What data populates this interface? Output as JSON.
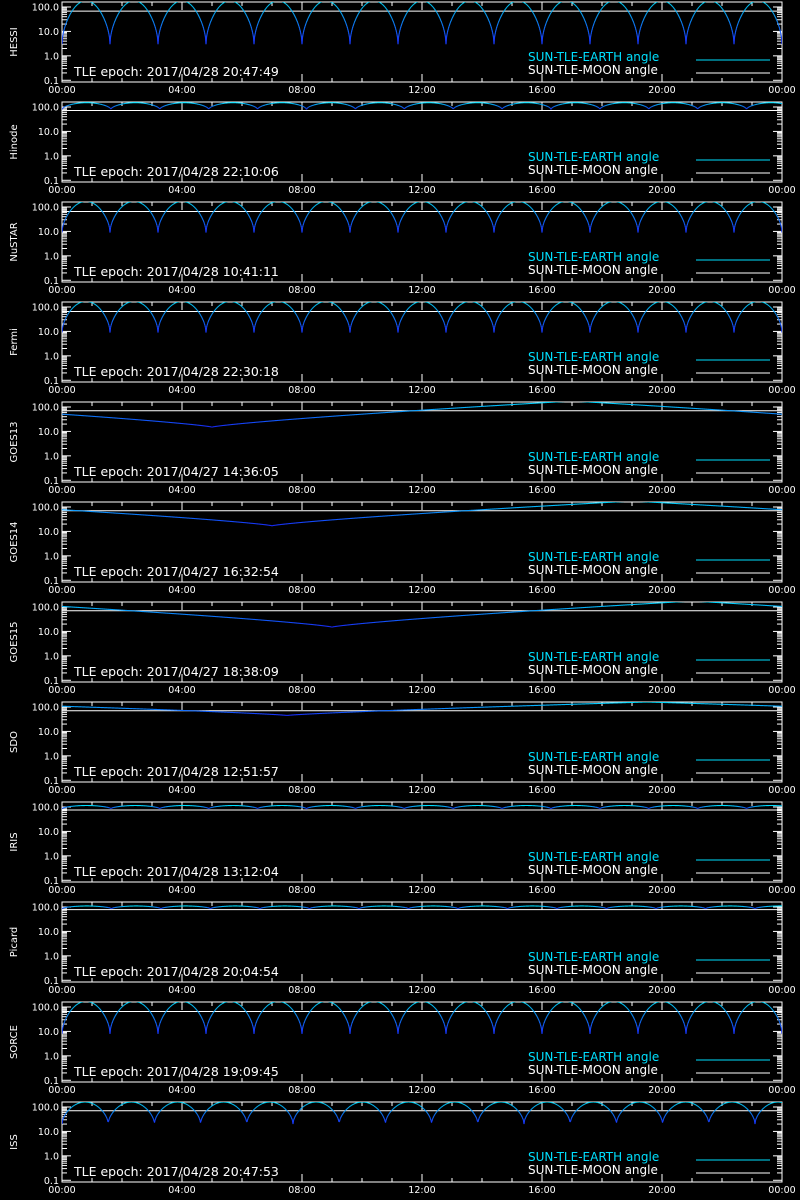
{
  "colors": {
    "background": "#000000",
    "axis": "#ffffff",
    "earth_line": "#00e0ff",
    "moon_line": "#ffffff",
    "curve_dip": "#1a2cff"
  },
  "shared": {
    "x_tick_labels": [
      "00:00",
      "04:00",
      "08:00",
      "12:00",
      "16:00",
      "20:00",
      "00:00"
    ],
    "y_tick_labels": [
      "100.0",
      "10.0",
      "1.0",
      "0.1"
    ],
    "legend": {
      "earth_label": "SUN-TLE-EARTH angle",
      "moon_label": "SUN-TLE-MOON angle"
    }
  },
  "chart_data": [
    {
      "type": "line",
      "ylabel": "HESSI",
      "epoch_text": "TLE epoch: 2017/04/28 20:47:49",
      "x_range": [
        "00:00",
        "24:00"
      ],
      "ylim": [
        0.1,
        180
      ],
      "yscale": "log",
      "series": [
        {
          "name": "SUN-TLE-EARTH angle",
          "pattern": "orbital",
          "orbit_period_h": 1.6,
          "max_deg": 180,
          "min_deg": 3
        },
        {
          "name": "SUN-TLE-MOON angle",
          "pattern": "flat",
          "value_deg": 68
        }
      ]
    },
    {
      "type": "line",
      "ylabel": "Hinode",
      "epoch_text": "TLE epoch: 2017/04/28 22:10:06",
      "x_range": [
        "00:00",
        "24:00"
      ],
      "ylim": [
        0.1,
        180
      ],
      "yscale": "log",
      "series": [
        {
          "name": "SUN-TLE-EARTH angle",
          "pattern": "orbital",
          "orbit_period_h": 1.63,
          "max_deg": 150,
          "min_deg": 80
        },
        {
          "name": "SUN-TLE-MOON angle",
          "pattern": "flat",
          "value_deg": 72
        }
      ]
    },
    {
      "type": "line",
      "ylabel": "NuSTAR",
      "epoch_text": "TLE epoch: 2017/04/28 10:41:11",
      "x_range": [
        "00:00",
        "24:00"
      ],
      "ylim": [
        0.1,
        180
      ],
      "yscale": "log",
      "series": [
        {
          "name": "SUN-TLE-EARTH angle",
          "pattern": "orbital",
          "orbit_period_h": 1.6,
          "max_deg": 170,
          "min_deg": 9
        },
        {
          "name": "SUN-TLE-MOON angle",
          "pattern": "flat",
          "value_deg": 65
        }
      ]
    },
    {
      "type": "line",
      "ylabel": "Fermi",
      "epoch_text": "TLE epoch: 2017/04/28 22:30:18",
      "x_range": [
        "00:00",
        "24:00"
      ],
      "ylim": [
        0.1,
        180
      ],
      "yscale": "log",
      "series": [
        {
          "name": "SUN-TLE-EARTH angle",
          "pattern": "orbital",
          "orbit_period_h": 1.6,
          "max_deg": 170,
          "min_deg": 9
        },
        {
          "name": "SUN-TLE-MOON angle",
          "pattern": "flat",
          "value_deg": 65
        }
      ]
    },
    {
      "type": "line",
      "ylabel": "GOES13",
      "epoch_text": "TLE epoch: 2017/04/27 14:36:05",
      "x_range": [
        "00:00",
        "24:00"
      ],
      "ylim": [
        0.1,
        180
      ],
      "yscale": "log",
      "series": [
        {
          "name": "SUN-TLE-EARTH angle",
          "pattern": "geo",
          "min_time_h": 5.0,
          "max_deg": 175,
          "min_deg": 15
        },
        {
          "name": "SUN-TLE-MOON angle",
          "pattern": "flat",
          "value_deg": 70
        }
      ]
    },
    {
      "type": "line",
      "ylabel": "GOES14",
      "epoch_text": "TLE epoch: 2017/04/27 16:32:54",
      "x_range": [
        "00:00",
        "24:00"
      ],
      "ylim": [
        0.1,
        180
      ],
      "yscale": "log",
      "series": [
        {
          "name": "SUN-TLE-EARTH angle",
          "pattern": "geo",
          "min_time_h": 7.0,
          "max_deg": 175,
          "min_deg": 17
        },
        {
          "name": "SUN-TLE-MOON angle",
          "pattern": "flat",
          "value_deg": 70
        }
      ]
    },
    {
      "type": "line",
      "ylabel": "GOES15",
      "epoch_text": "TLE epoch: 2017/04/27 18:38:09",
      "x_range": [
        "00:00",
        "24:00"
      ],
      "ylim": [
        0.1,
        180
      ],
      "yscale": "log",
      "series": [
        {
          "name": "SUN-TLE-EARTH angle",
          "pattern": "geo",
          "min_time_h": 9.0,
          "max_deg": 175,
          "min_deg": 15
        },
        {
          "name": "SUN-TLE-MOON angle",
          "pattern": "flat",
          "value_deg": 70
        }
      ]
    },
    {
      "type": "line",
      "ylabel": "SDO",
      "epoch_text": "TLE epoch: 2017/04/28 12:51:57",
      "x_range": [
        "00:00",
        "24:00"
      ],
      "ylim": [
        0.1,
        180
      ],
      "yscale": "log",
      "series": [
        {
          "name": "SUN-TLE-EARTH angle",
          "pattern": "geo",
          "min_time_h": 7.5,
          "max_deg": 160,
          "min_deg": 45
        },
        {
          "name": "SUN-TLE-MOON angle",
          "pattern": "flat",
          "value_deg": 70
        }
      ]
    },
    {
      "type": "line",
      "ylabel": "IRIS",
      "epoch_text": "TLE epoch: 2017/04/28 13:12:04",
      "x_range": [
        "00:00",
        "24:00"
      ],
      "ylim": [
        0.1,
        180
      ],
      "yscale": "log",
      "series": [
        {
          "name": "SUN-TLE-EARTH angle",
          "pattern": "orbital",
          "orbit_period_h": 1.63,
          "max_deg": 115,
          "min_deg": 85
        },
        {
          "name": "SUN-TLE-MOON angle",
          "pattern": "flat",
          "value_deg": 75
        }
      ]
    },
    {
      "type": "line",
      "ylabel": "Picard",
      "epoch_text": "TLE epoch: 2017/04/28 20:04:54",
      "x_range": [
        "00:00",
        "24:00"
      ],
      "ylim": [
        0.1,
        180
      ],
      "yscale": "log",
      "series": [
        {
          "name": "SUN-TLE-EARTH angle",
          "pattern": "orbital",
          "orbit_period_h": 1.65,
          "max_deg": 110,
          "min_deg": 85
        },
        {
          "name": "SUN-TLE-MOON angle",
          "pattern": "flat",
          "value_deg": 78
        }
      ]
    },
    {
      "type": "line",
      "ylabel": "SORCE",
      "epoch_text": "TLE epoch: 2017/04/28 19:09:45",
      "x_range": [
        "00:00",
        "24:00"
      ],
      "ylim": [
        0.1,
        180
      ],
      "yscale": "log",
      "series": [
        {
          "name": "SUN-TLE-EARTH angle",
          "pattern": "orbital",
          "orbit_period_h": 1.6,
          "max_deg": 170,
          "min_deg": 8
        },
        {
          "name": "SUN-TLE-MOON angle",
          "pattern": "flat",
          "value_deg": 65
        }
      ]
    },
    {
      "type": "line",
      "ylabel": "ISS",
      "epoch_text": "TLE epoch: 2017/04/28 20:47:53",
      "x_range": [
        "00:00",
        "24:00"
      ],
      "ylim": [
        0.1,
        180
      ],
      "yscale": "log",
      "series": [
        {
          "name": "SUN-TLE-EARTH angle",
          "pattern": "orbital",
          "orbit_period_h": 1.54,
          "max_deg": 160,
          "min_deg": 20
        },
        {
          "name": "SUN-TLE-MOON angle",
          "pattern": "flat",
          "value_deg": 70
        }
      ]
    }
  ]
}
